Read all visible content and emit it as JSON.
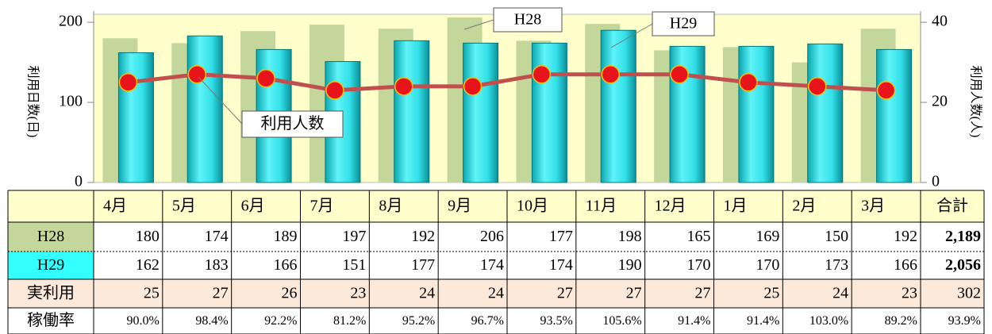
{
  "chart_data": {
    "type": "bar",
    "categories": [
      "4月",
      "5月",
      "6月",
      "7月",
      "8月",
      "9月",
      "10月",
      "11月",
      "12月",
      "1月",
      "2月",
      "3月"
    ],
    "total_header": "合計",
    "series": [
      {
        "name": "H28",
        "color": "#c4d79b",
        "values": [
          180,
          174,
          189,
          197,
          192,
          206,
          177,
          198,
          165,
          169,
          150,
          192
        ],
        "total": {
          "value": 2189,
          "label": "2,189"
        }
      },
      {
        "name": "H29",
        "color": "#33e0e8",
        "values": [
          162,
          183,
          166,
          151,
          177,
          174,
          174,
          190,
          170,
          170,
          173,
          166
        ],
        "total": {
          "value": 2056,
          "label": "2,056"
        }
      },
      {
        "name": "実利用",
        "color": "#c0504d",
        "axis": "y2",
        "type": "line",
        "values": [
          25,
          27,
          26,
          23,
          24,
          24,
          27,
          27,
          27,
          25,
          24,
          23
        ],
        "total": 302
      }
    ],
    "rate": {
      "name": "稼働率",
      "values": [
        90.0,
        98.4,
        92.2,
        81.2,
        95.2,
        96.7,
        93.5,
        105.6,
        91.4,
        91.4,
        103.0,
        89.2
      ],
      "value_labels": [
        "90.0%",
        "98.4%",
        "92.2%",
        "81.2%",
        "95.2%",
        "96.7%",
        "93.5%",
        "105.6%",
        "91.4%",
        "91.4%",
        "103.0%",
        "89.2%"
      ],
      "total": {
        "value": 93.9,
        "label": "93.9%"
      }
    },
    "ylabel": "利用日数(日)",
    "y2label": "利用人数(人)",
    "ylim": [
      0,
      210
    ],
    "yticks": [
      0,
      100,
      200
    ],
    "y2lim": [
      0,
      42
    ],
    "y2ticks": [
      0,
      20,
      40
    ],
    "annotations": [
      "H28",
      "H29",
      "利用人数"
    ]
  }
}
